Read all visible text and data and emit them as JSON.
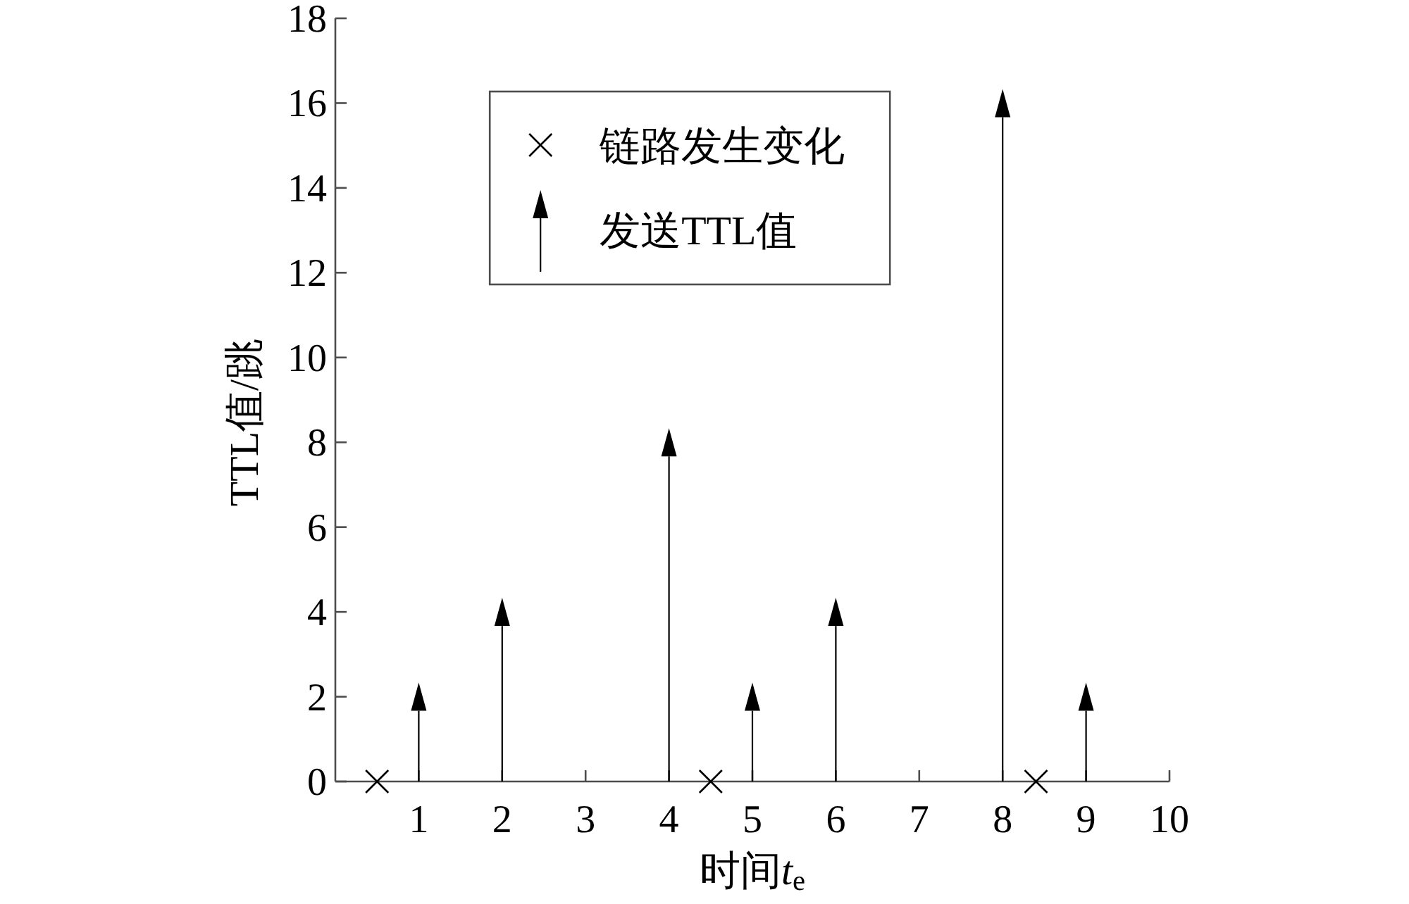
{
  "chart_data": {
    "type": "lollipop",
    "xlabel": "时间t$_{e}$",
    "ylabel": "TTL值/跳",
    "xlim": [
      0,
      10
    ],
    "xticks": [
      1,
      2,
      3,
      4,
      5,
      6,
      7,
      8,
      9,
      10
    ],
    "ylim": [
      0,
      18
    ],
    "yticks": [
      0,
      2,
      4,
      6,
      8,
      10,
      12,
      14,
      16,
      18
    ],
    "legend": "top",
    "series": [
      {
        "name": "链路发生变化",
        "type": "scatter",
        "marker": "cross",
        "color": "#000000",
        "x": [
          0.5,
          4.5,
          8.4
        ],
        "values": [
          0,
          0,
          0
        ]
      },
      {
        "name": "发送TTL值",
        "marker": "triangle",
        "color": "#000000",
        "x": [
          1,
          2,
          4,
          5,
          6,
          8,
          9
        ],
        "values": [
          2,
          4,
          8,
          2,
          4,
          16,
          2
        ]
      }
    ]
  }
}
